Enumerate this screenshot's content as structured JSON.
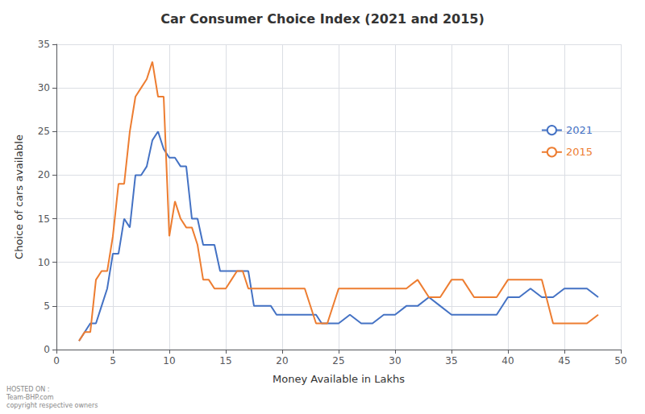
{
  "chart_data": {
    "type": "line",
    "title": "Car Consumer Choice Index (2021 and 2015)",
    "xlabel": "Money Available in Lakhs",
    "ylabel": "Choice of cars available",
    "xlim": [
      0,
      50
    ],
    "ylim": [
      0,
      35
    ],
    "xticks": [
      0,
      5,
      10,
      15,
      20,
      25,
      30,
      35,
      40,
      45,
      50
    ],
    "yticks": [
      0,
      5,
      10,
      15,
      20,
      25,
      30,
      35
    ],
    "grid": true,
    "legend": "upper right",
    "annotation": "HOSTED ON :\nTeam-BHP.com\ncopyright respective owners",
    "series": [
      {
        "name": "2021",
        "color": "#4472C4",
        "x": [
          2,
          3,
          3.5,
          4,
          4.5,
          5,
          5.5,
          6,
          6.5,
          7,
          7.5,
          8,
          8.5,
          9,
          9.5,
          10,
          10.5,
          11,
          11.5,
          12,
          12.5,
          13,
          13.5,
          14,
          14.5,
          15,
          15.5,
          16,
          16.5,
          17,
          17.5,
          18,
          18.5,
          19,
          19.5,
          20,
          21,
          22,
          22.5,
          23,
          23.5,
          24,
          25,
          26,
          27,
          28,
          29,
          30,
          31,
          32,
          33,
          34,
          35,
          36,
          37,
          38,
          39,
          40,
          41,
          42,
          43,
          44,
          45,
          46,
          47,
          48
        ],
        "values": [
          1,
          3,
          3,
          5,
          7,
          11,
          11,
          15,
          14,
          20,
          20,
          21,
          24,
          25,
          23,
          22,
          22,
          21,
          21,
          15,
          15,
          12,
          12,
          12,
          9,
          9,
          9,
          9,
          9,
          9,
          5,
          5,
          5,
          5,
          4,
          4,
          4,
          4,
          4,
          4,
          3,
          3,
          3,
          4,
          3,
          3,
          4,
          4,
          5,
          5,
          6,
          5,
          4,
          4,
          4,
          4,
          4,
          6,
          6,
          7,
          6,
          6,
          7,
          7,
          7,
          6
        ]
      },
      {
        "name": "2015",
        "color": "#ED7D31",
        "x": [
          2,
          2.5,
          3,
          3.5,
          4,
          4.5,
          5,
          5.5,
          6,
          6.5,
          7,
          7.5,
          8,
          8.5,
          9,
          9.5,
          10,
          10.5,
          11,
          11.5,
          12,
          12.5,
          13,
          13.5,
          14,
          14.5,
          15,
          15.5,
          16,
          16.5,
          17,
          17.5,
          18,
          19,
          20,
          21,
          22,
          23,
          24,
          25,
          26,
          27,
          28,
          29,
          30,
          31,
          32,
          33,
          34,
          35,
          36,
          37,
          38,
          39,
          40,
          41,
          42,
          43,
          44,
          45,
          46,
          47,
          48
        ],
        "values": [
          1,
          2,
          2,
          8,
          9,
          9,
          13,
          19,
          19,
          25,
          29,
          30,
          31,
          33,
          29,
          29,
          13,
          17,
          15,
          14,
          14,
          12,
          8,
          8,
          7,
          7,
          7,
          8,
          9,
          9,
          7,
          7,
          7,
          7,
          7,
          7,
          7,
          3,
          3,
          7,
          7,
          7,
          7,
          7,
          7,
          7,
          8,
          6,
          6,
          8,
          8,
          6,
          6,
          6,
          8,
          8,
          8,
          8,
          3,
          3,
          3,
          3,
          4
        ]
      }
    ]
  }
}
